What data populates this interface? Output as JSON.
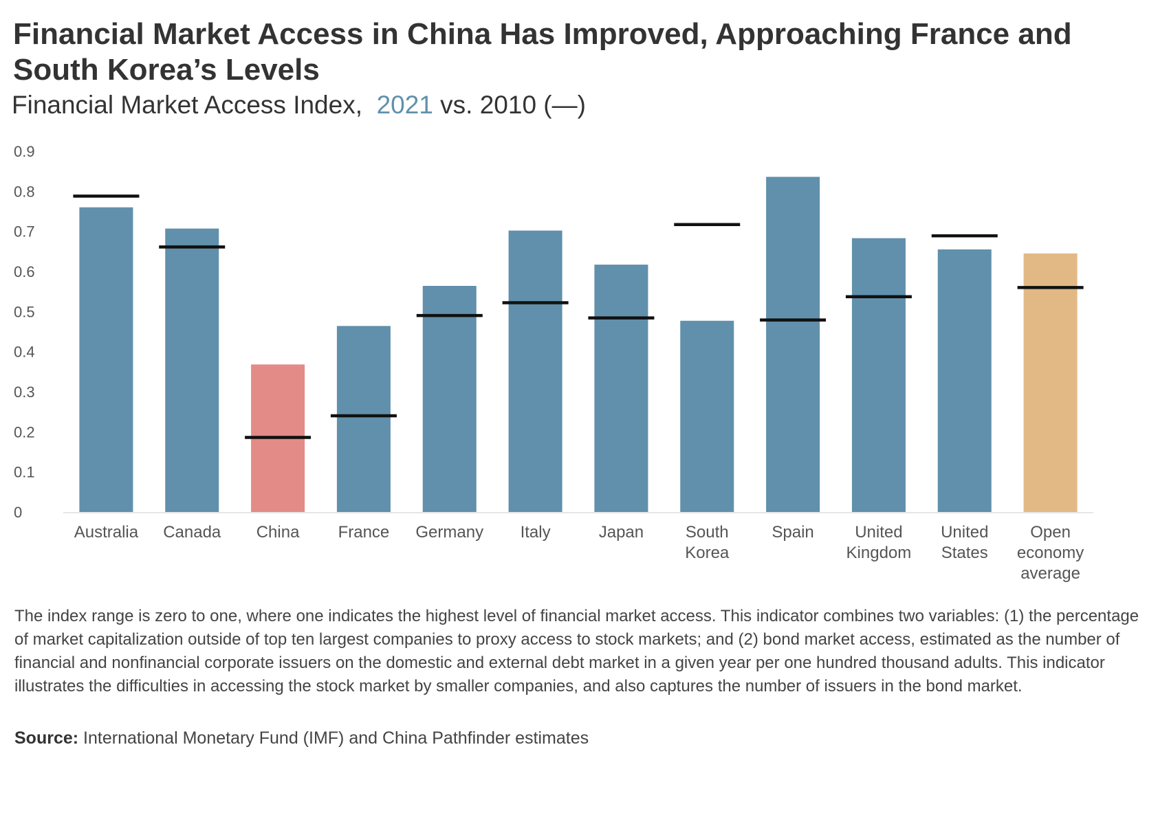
{
  "title": "Financial Market Access in China Has Improved, Approaching France and South Korea’s Levels",
  "subtitle": {
    "prefix": "Financial Market Access Index,",
    "year_2021": "2021",
    "suffix": "vs. 2010 (—)"
  },
  "colors": {
    "default_bar": "#6090ab",
    "china_bar": "#e38b86",
    "average_bar": "#e2b985",
    "marker_2010": "#111111",
    "highlight_text": "#6090ab"
  },
  "chart_data": {
    "type": "bar",
    "title": "Financial Market Access Index, 2021 vs. 2010 (—)",
    "ylim": [
      0,
      0.9
    ],
    "yticks": [
      "0",
      "0.1",
      "0.2",
      "0.3",
      "0.4",
      "0.5",
      "0.6",
      "0.7",
      "0.8",
      "0.9"
    ],
    "ytick_values": [
      0,
      0.1,
      0.2,
      0.3,
      0.4,
      0.5,
      0.6,
      0.7,
      0.8,
      0.9
    ],
    "categories": [
      {
        "lines": [
          "Australia"
        ]
      },
      {
        "lines": [
          "Canada"
        ]
      },
      {
        "lines": [
          "China"
        ]
      },
      {
        "lines": [
          "France"
        ]
      },
      {
        "lines": [
          "Germany"
        ]
      },
      {
        "lines": [
          "Italy"
        ]
      },
      {
        "lines": [
          "Japan"
        ]
      },
      {
        "lines": [
          "South",
          "Korea"
        ]
      },
      {
        "lines": [
          "Spain"
        ]
      },
      {
        "lines": [
          "United",
          "Kingdom"
        ]
      },
      {
        "lines": [
          "United",
          "States"
        ]
      },
      {
        "lines": [
          "Open",
          "economy",
          "average"
        ]
      }
    ],
    "series": [
      {
        "name": "2021",
        "values": [
          0.76,
          0.707,
          0.368,
          0.464,
          0.564,
          0.702,
          0.617,
          0.477,
          0.836,
          0.683,
          0.655,
          0.645
        ]
      },
      {
        "name": "2010",
        "values": [
          0.788,
          0.661,
          0.186,
          0.24,
          0.49,
          0.522,
          0.484,
          0.717,
          0.479,
          0.537,
          0.689,
          0.56
        ]
      }
    ],
    "bar_color_keys": [
      "default_bar",
      "default_bar",
      "china_bar",
      "default_bar",
      "default_bar",
      "default_bar",
      "default_bar",
      "default_bar",
      "default_bar",
      "default_bar",
      "default_bar",
      "average_bar"
    ]
  },
  "note": "The index range is zero to one, where one indicates the highest level of financial market access. This indicator combines two variables: (1) the percentage of market capitalization outside of top ten largest companies to proxy access to stock markets; and (2) bond market access, estimated as the number of financial and nonfinancial corporate issuers on the domestic and external debt market in a given year per one hundred thousand adults. This indicator illustrates the difficulties in accessing the stock market by smaller companies, and also captures the number of issuers in the bond market.",
  "source": {
    "label": "Source:",
    "text": "International Monetary Fund (IMF) and China Pathfinder estimates"
  }
}
